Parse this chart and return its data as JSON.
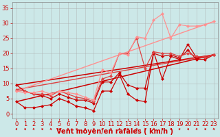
{
  "background_color": "#cce8e8",
  "grid_color": "#aaaaaa",
  "xlabel": "Vent moyen/en rafales ( km/h )",
  "xlabel_color": "#cc0000",
  "xlabel_fontsize": 7,
  "ylabel_ticks": [
    0,
    5,
    10,
    15,
    20,
    25,
    30,
    35
  ],
  "xlim": [
    -0.5,
    23.5
  ],
  "ylim": [
    -1.5,
    37
  ],
  "tick_color": "#cc0000",
  "tick_fontsize": 6,
  "xtick_labels": [
    "0",
    "1",
    "2",
    "3",
    "4",
    "5",
    "6",
    "7",
    "8",
    "9",
    "10",
    "11",
    "12",
    "13",
    "14",
    "15",
    "16",
    "17",
    "18",
    "19",
    "20",
    "21",
    "22",
    "23"
  ],
  "lines": [
    {
      "x": [
        0,
        1,
        2,
        3,
        4,
        5,
        6,
        7,
        8,
        9,
        10,
        11,
        12,
        13,
        14,
        15,
        16,
        17,
        18,
        19,
        20,
        21,
        22,
        23
      ],
      "y": [
        4,
        2,
        2,
        2.5,
        3,
        5,
        4,
        2.5,
        2,
        1,
        7.5,
        7.5,
        13,
        6.5,
        4.5,
        4,
        20.5,
        11.5,
        19,
        18,
        23,
        18.5,
        18.5,
        19.5
      ],
      "color": "#cc0000",
      "lw": 0.9,
      "marker": "D",
      "ms": 2.0
    },
    {
      "x": [
        0,
        1,
        2,
        3,
        4,
        5,
        6,
        7,
        8,
        9,
        10,
        11,
        12,
        13,
        14,
        15,
        16,
        17,
        18,
        19,
        20,
        21,
        22,
        23
      ],
      "y": [
        9.5,
        7.5,
        6.5,
        6,
        5,
        6.5,
        5.5,
        4.5,
        4.5,
        3.5,
        10.5,
        10.5,
        13.5,
        9.5,
        8.5,
        8.5,
        20,
        19,
        19.5,
        18.5,
        21,
        18,
        18,
        19.5
      ],
      "color": "#cc0000",
      "lw": 0.9,
      "marker": "D",
      "ms": 2.0
    },
    {
      "x": [
        0,
        1,
        2,
        3,
        4,
        5,
        6,
        7,
        8,
        9,
        10,
        11,
        12,
        13,
        14,
        15,
        16,
        17,
        18,
        19,
        20,
        21,
        22,
        23
      ],
      "y": [
        8,
        7.5,
        6.5,
        6.5,
        6,
        7.5,
        6.5,
        5.5,
        5,
        4,
        11.5,
        12.5,
        20,
        20,
        25,
        15,
        20.5,
        20,
        20,
        19,
        20,
        19,
        18.5,
        19.5
      ],
      "color": "#dd4444",
      "lw": 0.9,
      "marker": "D",
      "ms": 2.0
    },
    {
      "x": [
        0,
        1,
        2,
        3,
        4,
        5,
        6,
        7,
        8,
        9,
        10,
        11,
        12,
        13,
        14,
        15,
        16,
        17,
        18,
        19,
        20,
        21,
        22,
        23
      ],
      "y": [
        7.5,
        7,
        7,
        7.5,
        6.5,
        7.5,
        7,
        6.5,
        5.5,
        4.5,
        14.5,
        13.5,
        20,
        19.5,
        25.5,
        25,
        31,
        33,
        25,
        29.5,
        29,
        29,
        29.5,
        30.5
      ],
      "color": "#ff9090",
      "lw": 0.9,
      "marker": "D",
      "ms": 2.0
    },
    {
      "x": [
        0,
        23
      ],
      "y": [
        4,
        19.5
      ],
      "color": "#cc0000",
      "lw": 1.1,
      "marker": null,
      "ms": 0
    },
    {
      "x": [
        0,
        23
      ],
      "y": [
        9.5,
        19.5
      ],
      "color": "#cc0000",
      "lw": 1.1,
      "marker": null,
      "ms": 0
    },
    {
      "x": [
        0,
        23
      ],
      "y": [
        8,
        19.5
      ],
      "color": "#dd4444",
      "lw": 1.0,
      "marker": null,
      "ms": 0
    },
    {
      "x": [
        0,
        23
      ],
      "y": [
        7.5,
        30.5
      ],
      "color": "#ff9090",
      "lw": 1.0,
      "marker": null,
      "ms": 0
    }
  ]
}
